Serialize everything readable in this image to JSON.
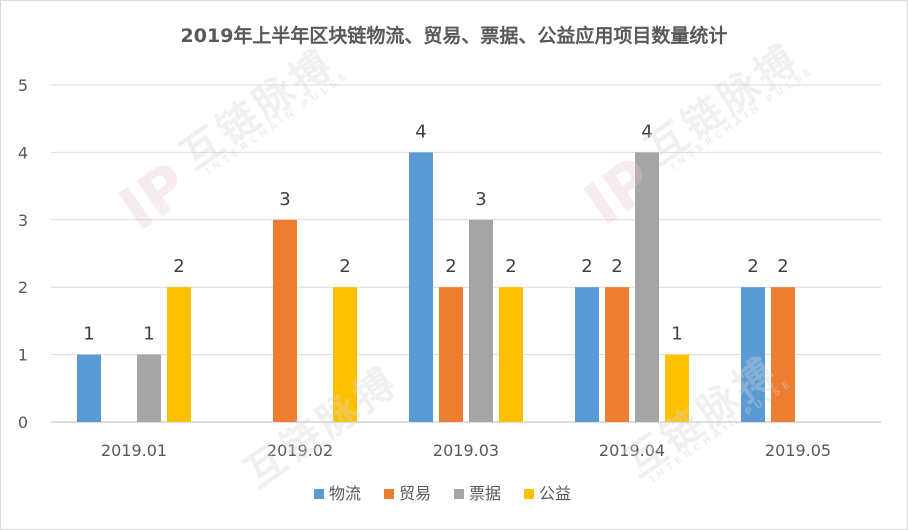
{
  "chart_data": {
    "type": "bar",
    "title": "2019年上半年区块链物流、贸易、票据、公益应用项目数量统计",
    "categories": [
      "2019.01",
      "2019.02",
      "2019.03",
      "2019.04",
      "2019.05"
    ],
    "series": [
      {
        "name": "物流",
        "color": "#5b9bd5",
        "values": [
          1,
          null,
          4,
          2,
          2
        ]
      },
      {
        "name": "贸易",
        "color": "#ed7d31",
        "values": [
          null,
          3,
          2,
          2,
          2
        ]
      },
      {
        "name": "票据",
        "color": "#a5a5a5",
        "values": [
          1,
          null,
          3,
          4,
          null
        ]
      },
      {
        "name": "公益",
        "color": "#ffc000",
        "values": [
          2,
          2,
          2,
          1,
          null
        ]
      }
    ],
    "ylim": [
      0,
      5
    ],
    "yticks": [
      0,
      1,
      2,
      3,
      4,
      5
    ],
    "grid": true,
    "legend": "bottom",
    "data_labels": true
  },
  "watermark": {
    "name_cn": "互链脉搏",
    "name_en": "INTERCHAIN PULSE",
    "logo_mark": "IP"
  }
}
